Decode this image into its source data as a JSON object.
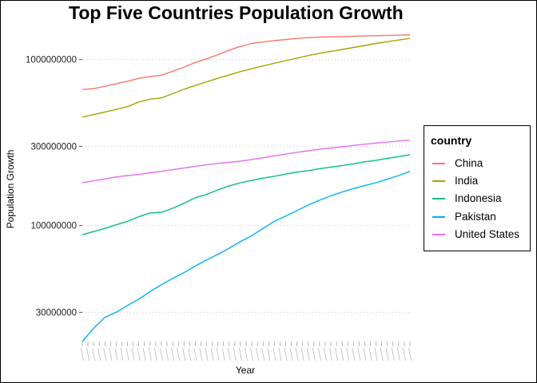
{
  "chart_data": {
    "type": "line",
    "title": "Top Five Countries Population Growth",
    "xlabel": "Year",
    "ylabel": "Population Growth",
    "y_scale": "log",
    "ylim": [
      20000000,
      1500000000
    ],
    "y_ticks": [
      30000000,
      100000000,
      300000000,
      1000000000
    ],
    "y_tick_labels": [
      "30000000",
      "100000000",
      "300000000",
      "1000000000"
    ],
    "grid": "horizontal dotted",
    "legend": {
      "title": "country",
      "position": "right"
    },
    "x_note": "years 1960-2018, tick labels illegible",
    "x": [
      1960,
      1962,
      1964,
      1966,
      1968,
      1970,
      1972,
      1974,
      1976,
      1978,
      1980,
      1982,
      1984,
      1986,
      1988,
      1990,
      1992,
      1994,
      1996,
      1998,
      2000,
      2002,
      2004,
      2006,
      2008,
      2010,
      2012,
      2014,
      2016,
      2018
    ],
    "series": [
      {
        "name": "China",
        "color": "#F8766D",
        "values": [
          660000000,
          668000000,
          690000000,
          715000000,
          740000000,
          770000000,
          790000000,
          805000000,
          850000000,
          900000000,
          960000000,
          1010000000,
          1070000000,
          1140000000,
          1200000000,
          1250000000,
          1275000000,
          1300000000,
          1320000000,
          1340000000,
          1355000000,
          1365000000,
          1370000000,
          1375000000,
          1382000000,
          1387000000,
          1392000000,
          1397000000,
          1402000000,
          1406000000
        ]
      },
      {
        "name": "India",
        "color": "#A3A500",
        "values": [
          450000000,
          466000000,
          483000000,
          501000000,
          520000000,
          555000000,
          577000000,
          587000000,
          623000000,
          662000000,
          698000000,
          734000000,
          771000000,
          808000000,
          846000000,
          880000000,
          915000000,
          950000000,
          985000000,
          1020000000,
          1056000000,
          1090000000,
          1120000000,
          1150000000,
          1182000000,
          1216000000,
          1250000000,
          1282000000,
          1310000000,
          1341000000
        ]
      },
      {
        "name": "Indonesia",
        "color": "#00BF7D",
        "values": [
          88000000,
          92000000,
          96000000,
          101000000,
          106000000,
          113000000,
          119000000,
          120000000,
          127000000,
          136000000,
          147000000,
          154000000,
          164000000,
          173000000,
          181000000,
          187000000,
          193000000,
          198000000,
          204000000,
          210000000,
          214000000,
          220000000,
          225000000,
          230000000,
          235000000,
          242000000,
          247000000,
          254000000,
          260000000,
          267000000
        ]
      },
      {
        "name": "Pakistan",
        "color": "#00B0F6",
        "values": [
          20000000,
          24000000,
          28000000,
          30000000,
          33000000,
          36000000,
          40000000,
          44000000,
          48000000,
          52000000,
          57000000,
          62000000,
          67000000,
          73000000,
          80000000,
          87000000,
          96000000,
          106000000,
          114000000,
          123000000,
          133000000,
          142000000,
          151000000,
          159000000,
          167000000,
          174000000,
          181000000,
          190000000,
          200000000,
          212000000
        ]
      },
      {
        "name": "United States",
        "color": "#E76BF3",
        "values": [
          181000000,
          186000000,
          191000000,
          196000000,
          200000000,
          203000000,
          208000000,
          212000000,
          217000000,
          222000000,
          227000000,
          232000000,
          237000000,
          240000000,
          244000000,
          250000000,
          256000000,
          263000000,
          269000000,
          276000000,
          282000000,
          288000000,
          293000000,
          298000000,
          304000000,
          309000000,
          314000000,
          318000000,
          323000000,
          327000000
        ]
      }
    ]
  }
}
